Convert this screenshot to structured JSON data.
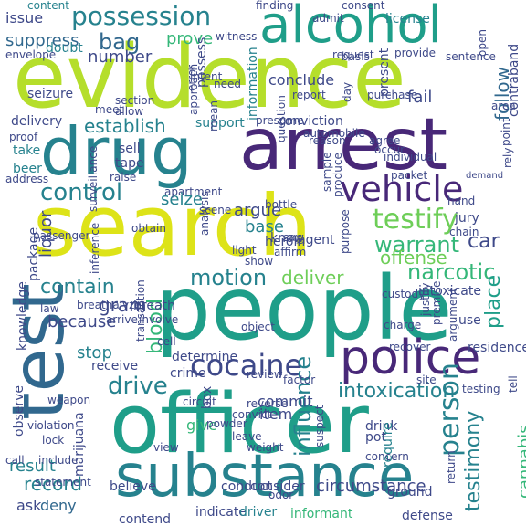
{
  "colors": {
    "yellow_green": "#b5de2b",
    "light_green": "#6ece58",
    "green": "#35b779",
    "teal": "#1f9e89",
    "blue_teal": "#26828e",
    "blue": "#31688e",
    "indigo": "#3e4989",
    "purple": "#482878",
    "dark_purple": "#440154",
    "yellow": "#dde318"
  },
  "words": {
    "evidence": "evidence",
    "people": "people",
    "search": "search",
    "officer": "officer",
    "arrest": "arrest",
    "substance": "substance",
    "drug": "drug",
    "test": "test",
    "alcohol": "alcohol",
    "possession": "possession",
    "police": "police",
    "vehicle": "vehicle",
    "cocaine": "cocaine",
    "control": "control",
    "testify": "testify",
    "person": "person",
    "motion": "motion",
    "warrant": "warrant",
    "influence": "influence",
    "intoxication": "intoxication",
    "narcotic": "narcotic",
    "establish": "establish",
    "drive": "drive",
    "testimony": "testimony",
    "car": "car",
    "blood": "blood",
    "contain": "contain",
    "bag": "bag",
    "suppress": "suppress",
    "number": "number",
    "deliver": "deliver",
    "offense": "offense",
    "seize": "seize",
    "argue": "argue",
    "prove": "prove",
    "issue": "issue",
    "place": "place",
    "result": "result",
    "record": "record",
    "because": "because",
    "stop": "stop",
    "gram": "gram",
    "liquor": "liquor",
    "base": "base",
    "follow": "follow",
    "cannabis": "cannabis",
    "fail": "fail",
    "conclude": "conclude",
    "circumstance": "circumstance",
    "give": "give",
    "item": "item",
    "commit": "commit",
    "ask": "ask",
    "deny": "deny",
    "informant": "informant",
    "defense": "defense",
    "consider": "consider",
    "contend": "contend",
    "indicate": "indicate",
    "driver": "driver",
    "conduct": "conduct",
    "believe": "believe",
    "determine": "determine",
    "receive": "receive",
    "crime": "crime",
    "observe": "observe",
    "marijuana": "marijuana",
    "doubt": "doubt",
    "content": "content",
    "finding": "finding",
    "admit": "admit",
    "license": "license",
    "basis": "basis",
    "intent": "intent",
    "possess": "possess",
    "heroin": "heroin",
    "know": "know",
    "agent": "agent",
    "jury": "jury",
    "chain": "chain",
    "intoxicate": "intoxicate",
    "breath": "breath",
    "package": "package",
    "knowledge": "knowledge",
    "seizure": "seizure",
    "delivery": "delivery",
    "take": "take",
    "beer": "beer",
    "support": "support",
    "conviction": "conviction",
    "automobile": "automobile",
    "information": "information",
    "present": "present",
    "purchase": "purchase",
    "provide": "provide",
    "sentence": "sentence",
    "sell": "sell",
    "tape": "tape",
    "raise": "raise",
    "apartment": "apartment",
    "scene": "scene",
    "analysis": "analysis",
    "affirm": "affirm",
    "sample": "sample",
    "produce": "produce",
    "hand": "hand",
    "drink": "drink",
    "pot": "pot",
    "require": "require",
    "concern": "concern",
    "ground": "ground",
    "use": "use",
    "charge": "charge",
    "residence": "residence",
    "recover": "recover",
    "review": "review",
    "factor": "factor",
    "box": "box",
    "powder": "powder",
    "leave": "leave",
    "weight": "weight",
    "convict": "convict",
    "circuit": "circuit",
    "reverse": "reverse",
    "view": "view",
    "call": "call",
    "statement": "statement",
    "include": "include",
    "violation": "violation",
    "lock": "lock",
    "weapon": "weapon",
    "law": "law",
    "involve": "involve",
    "arrive": "arrive",
    "cell": "cell",
    "object": "object",
    "custody": "custody",
    "say": "say",
    "purpose": "purpose",
    "bottle": "bottle",
    "individual": "individual",
    "occur": "occur",
    "agree": "agree",
    "packet": "packet",
    "mean": "mean",
    "reason": "reason",
    "question": "question",
    "error": "error",
    "approach": "approach",
    "need": "need",
    "section": "section",
    "meet": "meet",
    "allow": "allow",
    "proof": "proof",
    "address": "address",
    "envelope": "envelope",
    "report": "report",
    "request": "request",
    "consent": "consent",
    "open": "open",
    "point": "point",
    "contraband": "contraband",
    "area": "area",
    "rely": "rely",
    "demand": "demand",
    "argument": "argument",
    "premise": "premise",
    "justify": "justify",
    "surveillance": "surveillance",
    "inference": "inference",
    "obtain": "obtain",
    "light": "light",
    "show": "show",
    "passenger": "passenger",
    "transaction": "transaction",
    "breathalyzer": "breathalyzer",
    "suspect": "suspect",
    "witness": "witness",
    "day": "day",
    "presume": "presume",
    "return": "return",
    "tell": "tell",
    "site": "site",
    "testing": "testing",
    "odor": "odor"
  }
}
